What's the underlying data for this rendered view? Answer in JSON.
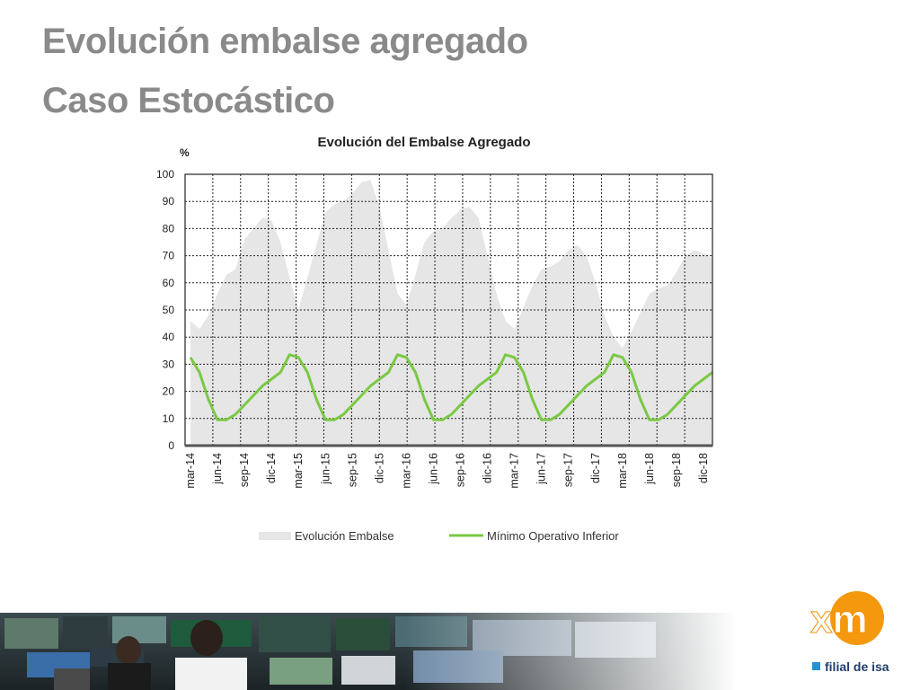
{
  "slide": {
    "title_line1": "Evolución embalse agregado",
    "title_line2": "Caso Estocástico"
  },
  "logo": {
    "mark_text": "xm",
    "tagline": "filial de isa",
    "mark_color": "#f39200",
    "tagline_color": "#1f3d6e"
  },
  "chart_data": {
    "type": "area",
    "title": "Evolución del Embalse Agregado",
    "ylabel": "%",
    "ylim": [
      0,
      100
    ],
    "yticks": [
      0,
      10,
      20,
      30,
      40,
      50,
      60,
      70,
      80,
      90,
      100
    ],
    "grid": true,
    "legend_position": "bottom",
    "x": [
      "mar-14",
      "abr-14",
      "may-14",
      "jun-14",
      "jul-14",
      "ago-14",
      "sep-14",
      "oct-14",
      "nov-14",
      "dic-14",
      "ene-15",
      "feb-15",
      "mar-15",
      "abr-15",
      "may-15",
      "jun-15",
      "jul-15",
      "ago-15",
      "sep-15",
      "oct-15",
      "nov-15",
      "dic-15",
      "ene-16",
      "feb-16",
      "mar-16",
      "abr-16",
      "may-16",
      "jun-16",
      "jul-16",
      "ago-16",
      "sep-16",
      "oct-16",
      "nov-16",
      "dic-16",
      "ene-17",
      "feb-17",
      "mar-17",
      "abr-17",
      "may-17",
      "jun-17",
      "jul-17",
      "ago-17",
      "sep-17",
      "oct-17",
      "nov-17",
      "dic-17",
      "ene-18",
      "feb-18",
      "mar-18",
      "abr-18",
      "may-18",
      "jun-18",
      "jul-18",
      "ago-18",
      "sep-18",
      "oct-18",
      "nov-18",
      "dic-18",
      "ene-19"
    ],
    "x_tick_labels": [
      "mar-14",
      "jun-14",
      "sep-14",
      "dic-14",
      "mar-15",
      "jun-15",
      "sep-15",
      "dic-15",
      "mar-16",
      "jun-16",
      "sep-16",
      "dic-16",
      "mar-17",
      "jun-17",
      "sep-17",
      "dic-17",
      "mar-18",
      "jun-18",
      "sep-18",
      "dic-18"
    ],
    "series": [
      {
        "name": "Evolución Embalse",
        "style": "area",
        "color": "#e6e6e6",
        "values": [
          46,
          43,
          48,
          56,
          63,
          65,
          76,
          80,
          84,
          83,
          75,
          62,
          50,
          62,
          74,
          86,
          89,
          90,
          93,
          97,
          98,
          88,
          72,
          56,
          52,
          63,
          75,
          79,
          80,
          84,
          87,
          88,
          84,
          70,
          56,
          46,
          43,
          51,
          59,
          65,
          66,
          68,
          72,
          74,
          70,
          60,
          48,
          40,
          36,
          42,
          49,
          56,
          58,
          59,
          64,
          70,
          72,
          71,
          69
        ]
      },
      {
        "name": "Mínimo Operativo Inferior",
        "style": "line",
        "color": "#7ac943",
        "values": [
          32.5,
          27,
          17,
          9.5,
          9.5,
          11.5,
          15,
          18.5,
          22,
          24.5,
          27,
          33.5,
          32.5,
          27,
          17,
          9.5,
          9.5,
          11.5,
          15,
          18.5,
          22,
          24.5,
          27,
          33.5,
          32.5,
          27,
          17,
          9.5,
          9.5,
          11.5,
          15,
          18.5,
          22,
          24.5,
          27,
          33.5,
          32.5,
          27,
          17,
          9.5,
          9.5,
          11.5,
          15,
          18.5,
          22,
          24.5,
          27,
          33.5,
          32.5,
          27,
          17,
          9.5,
          9.5,
          11.5,
          15,
          18.5,
          22,
          24.5,
          27
        ]
      }
    ]
  }
}
